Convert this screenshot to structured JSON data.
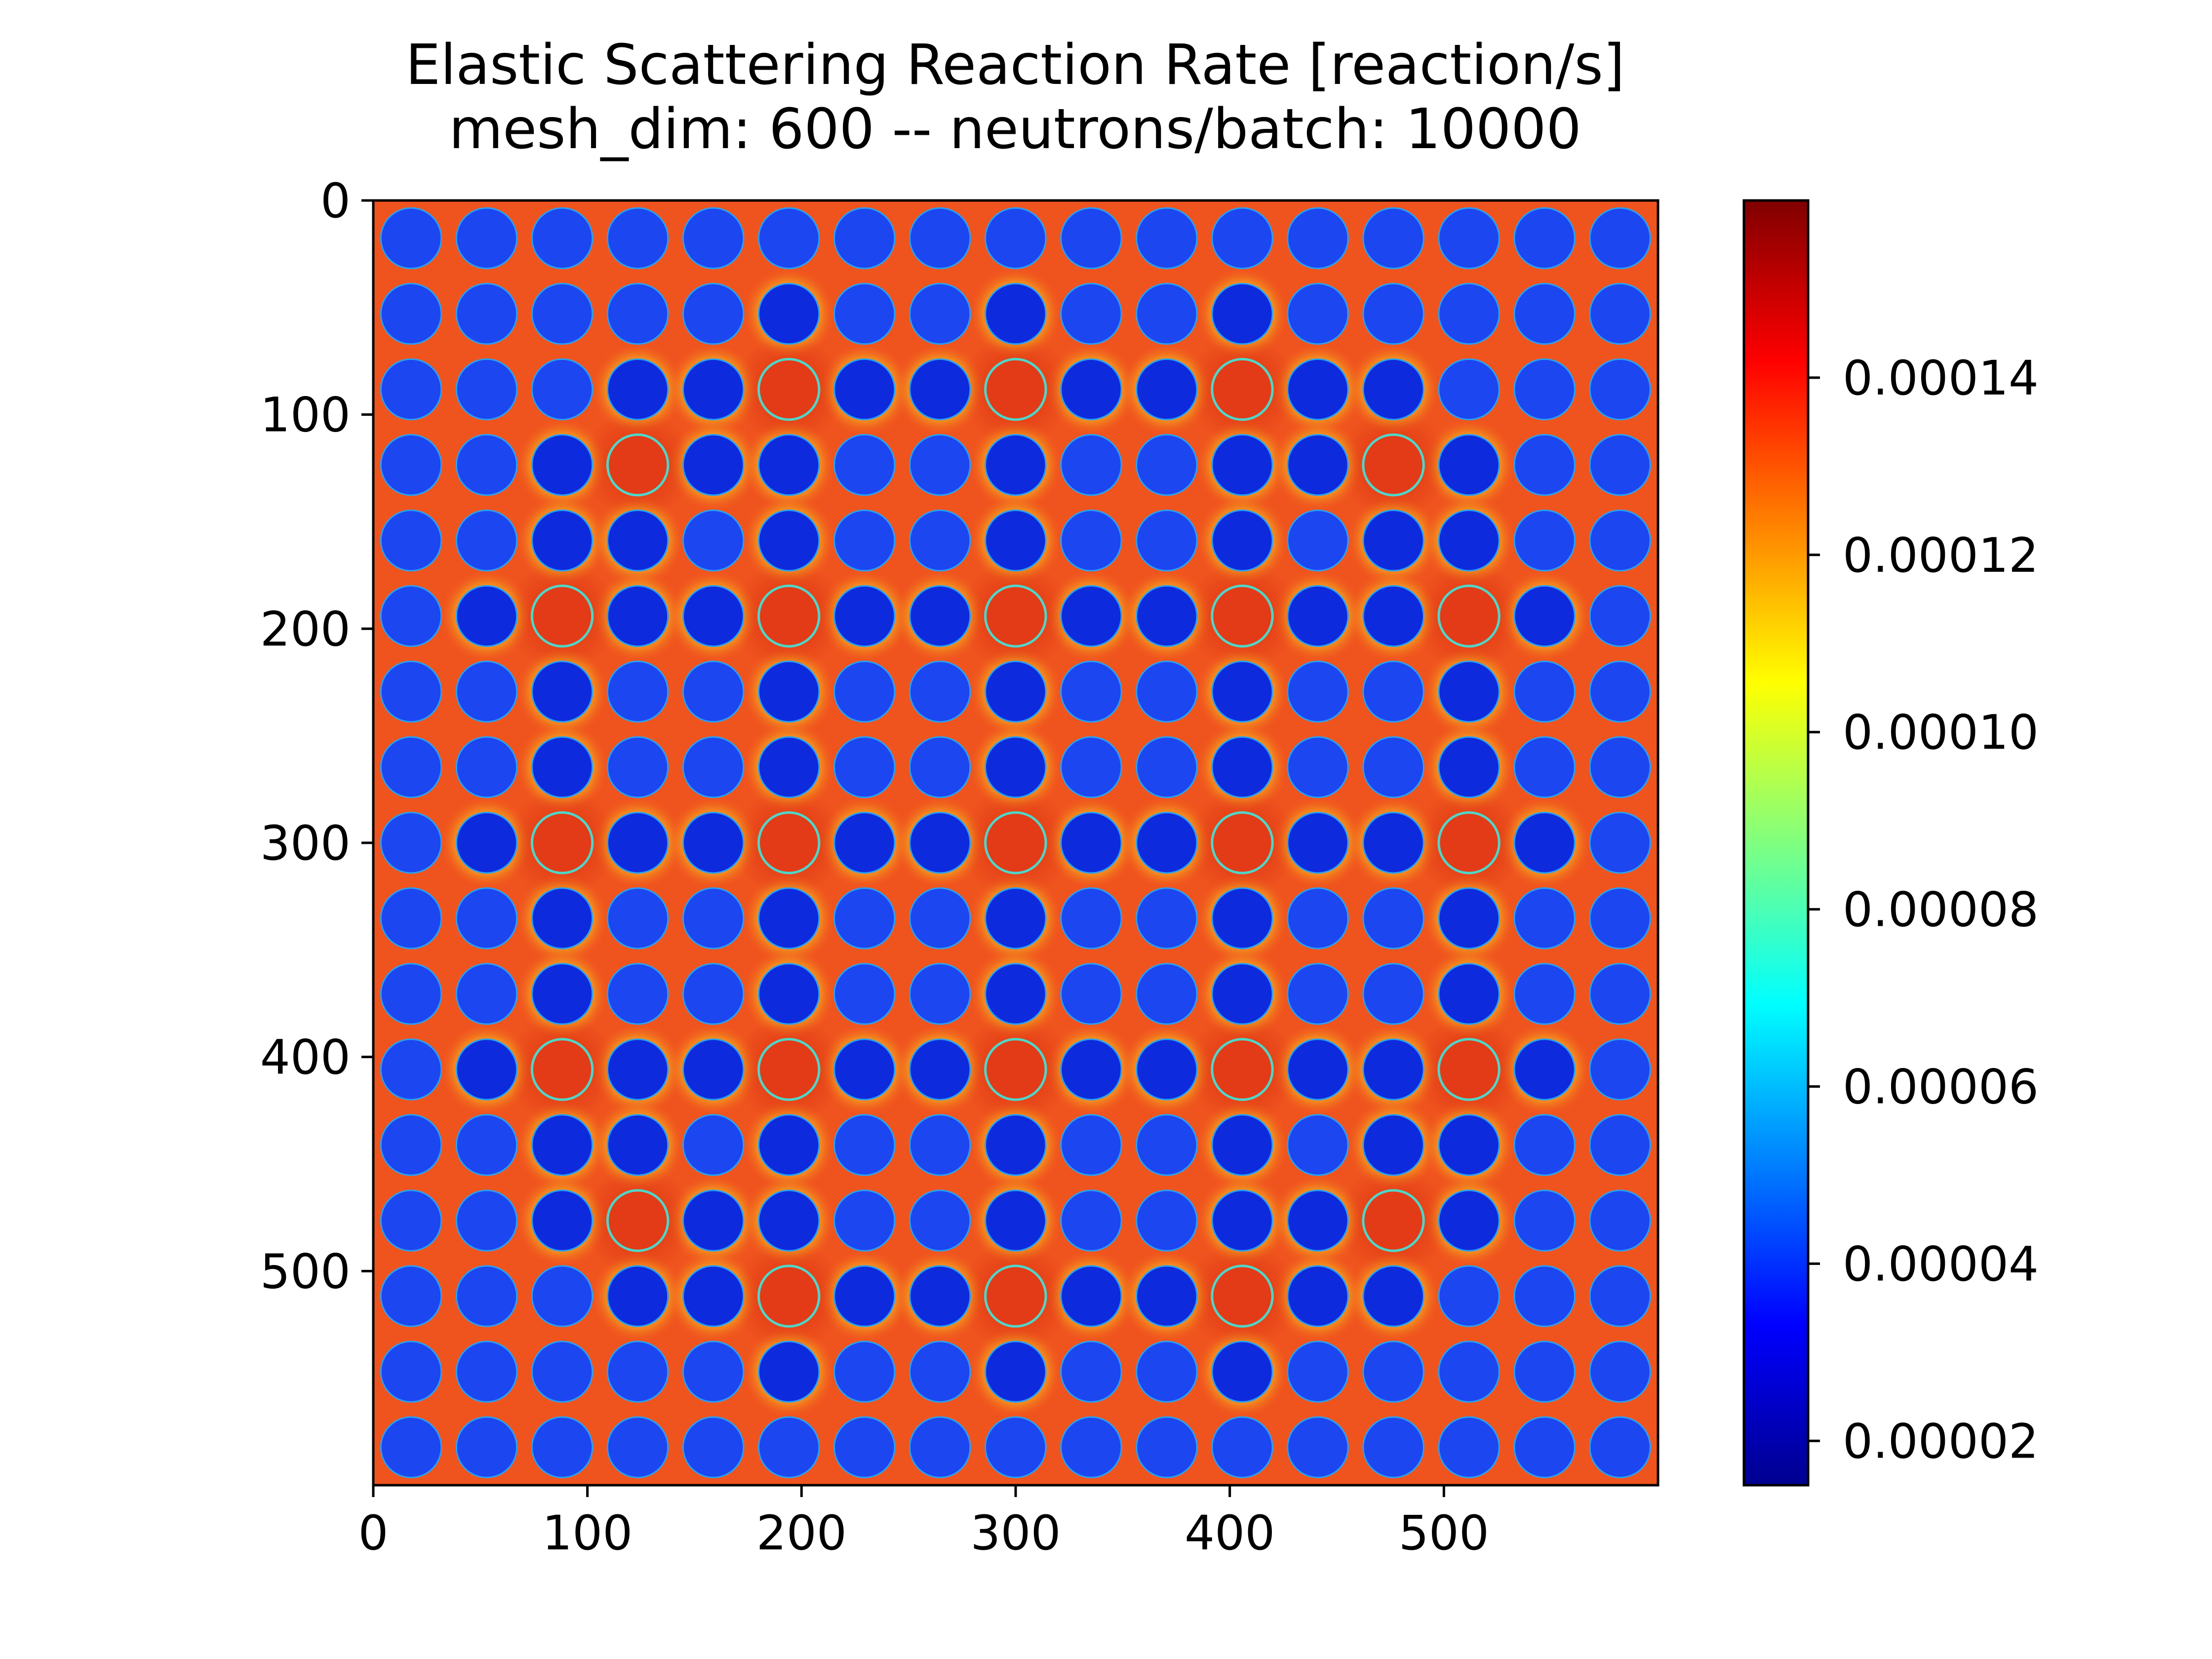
{
  "chart_data": {
    "type": "heatmap",
    "title": "Elastic Scattering Reaction Rate [reaction/s]",
    "subtitle": "mesh_dim: 600 -- neutrons/batch: 10000",
    "xlabel": "",
    "ylabel": "",
    "xlim": [
      0,
      600
    ],
    "ylim": [
      600,
      0
    ],
    "x_ticks": [
      "0",
      "100",
      "200",
      "300",
      "400",
      "500"
    ],
    "y_ticks": [
      "0",
      "100",
      "200",
      "300",
      "400",
      "500"
    ],
    "colormap": "jet",
    "colorbar": {
      "range": [
        1.5e-05,
        0.00016
      ],
      "ticks": [
        "0.00002",
        "0.00004",
        "0.00006",
        "0.00008",
        "0.00010",
        "0.00012",
        "0.00014"
      ]
    },
    "lattice": {
      "rows": 17,
      "cols": 17,
      "pitch": 35.29,
      "moderator_value": 0.000128,
      "fuel_pin_value": 3.6e-05,
      "guide_tube_positions": [
        [
          2,
          5
        ],
        [
          2,
          8
        ],
        [
          2,
          11
        ],
        [
          3,
          3
        ],
        [
          3,
          13
        ],
        [
          5,
          2
        ],
        [
          5,
          5
        ],
        [
          5,
          8
        ],
        [
          5,
          11
        ],
        [
          5,
          14
        ],
        [
          8,
          2
        ],
        [
          8,
          5
        ],
        [
          8,
          8
        ],
        [
          8,
          11
        ],
        [
          8,
          14
        ],
        [
          11,
          2
        ],
        [
          11,
          5
        ],
        [
          11,
          8
        ],
        [
          11,
          11
        ],
        [
          11,
          14
        ],
        [
          13,
          3
        ],
        [
          13,
          13
        ],
        [
          14,
          5
        ],
        [
          14,
          8
        ],
        [
          14,
          11
        ]
      ],
      "guide_tube_value": 0.00014
    }
  },
  "colors": {
    "moderator": "#f0541e",
    "fuel_pin": "#1c46f0",
    "fuel_pin_dark": "#0d2bdc",
    "guide_tube": "#e33a18",
    "guide_ring": "#4fd6c8",
    "halo": "#f4c21a"
  }
}
